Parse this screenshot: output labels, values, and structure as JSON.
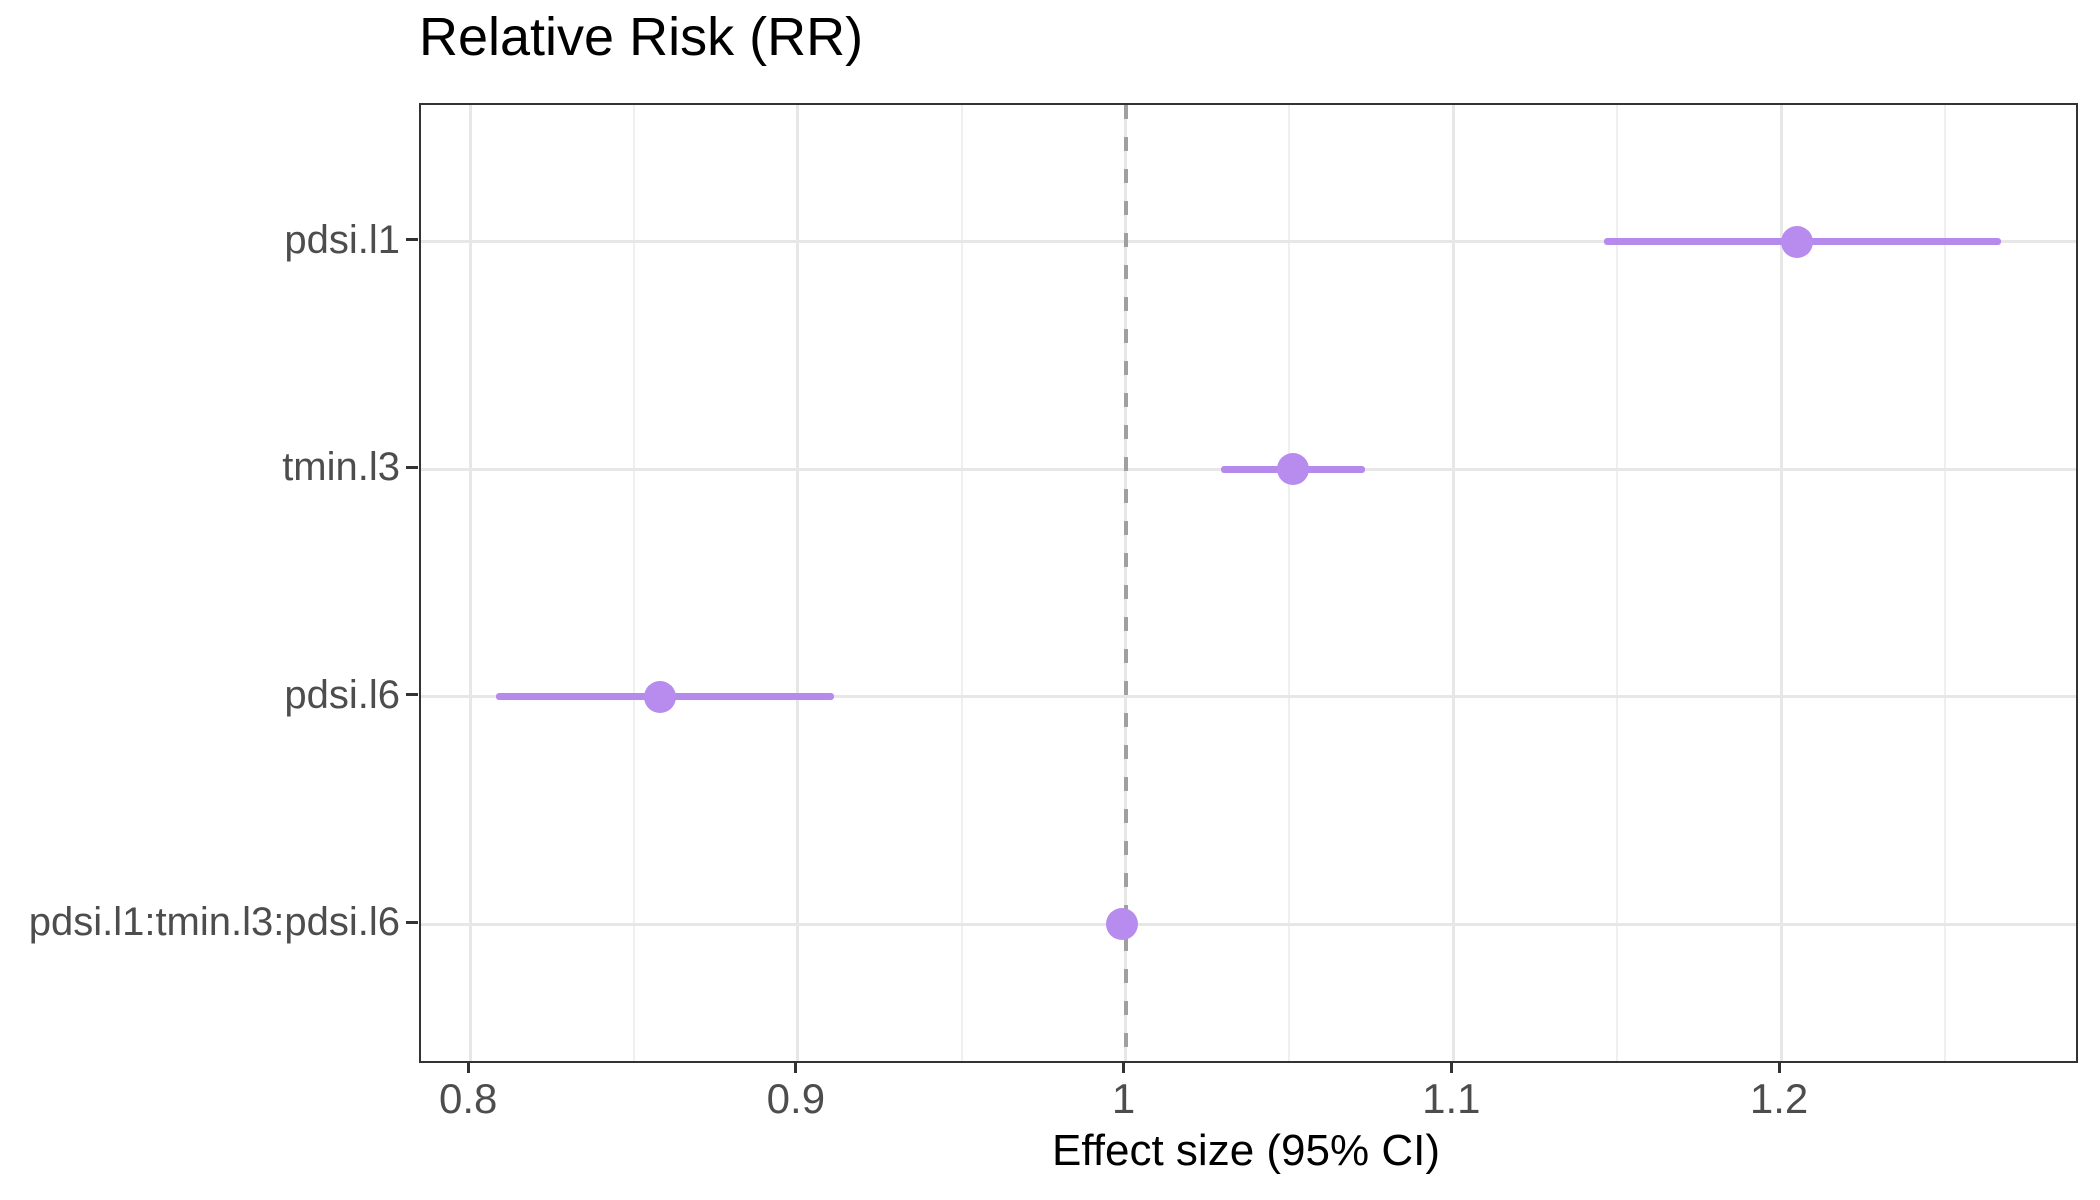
{
  "chart_data": {
    "type": "scatter",
    "subtype": "forest-plot-pointrange",
    "title": "Relative Risk (RR)",
    "xlabel": "Effect size (95% CI)",
    "ylabel": "",
    "xlim": [
      0.785,
      1.29
    ],
    "x_ticks": {
      "values": [
        0.8,
        0.9,
        1.0,
        1.1,
        1.2
      ],
      "labels": [
        "0.8",
        "0.9",
        "1",
        "1.1",
        "1.2"
      ]
    },
    "x_minor_ticks": [
      0.85,
      0.95,
      1.05,
      1.15,
      1.25
    ],
    "categories": [
      "pdsi.l1",
      "tmin.l3",
      "pdsi.l6",
      "pdsi.l1:tmin.l3:pdsi.l6"
    ],
    "series": [
      {
        "term": "pdsi.l1",
        "estimate": 1.205,
        "ci_low": 1.146,
        "ci_high": 1.267
      },
      {
        "term": "tmin.l3",
        "estimate": 1.051,
        "ci_low": 1.029,
        "ci_high": 1.073
      },
      {
        "term": "pdsi.l6",
        "estimate": 0.858,
        "ci_low": 0.808,
        "ci_high": 0.911
      },
      {
        "term": "pdsi.l1:tmin.l3:pdsi.l6",
        "estimate": 0.999,
        "ci_low": 0.995,
        "ci_high": 1.003
      }
    ],
    "reference_line": {
      "x": 1.0,
      "style": "dashed",
      "color": "#a0a0a0"
    },
    "grid": true,
    "legend_position": "none",
    "colors": {
      "point": "#b78cee",
      "ci_line": "#b58aec",
      "grid_major": "#e7e7e7",
      "grid_minor": "#efefef",
      "panel_border": "#333333",
      "axis_text": "#4d4d4d",
      "title_text": "#000000",
      "background": "#ffffff"
    }
  }
}
